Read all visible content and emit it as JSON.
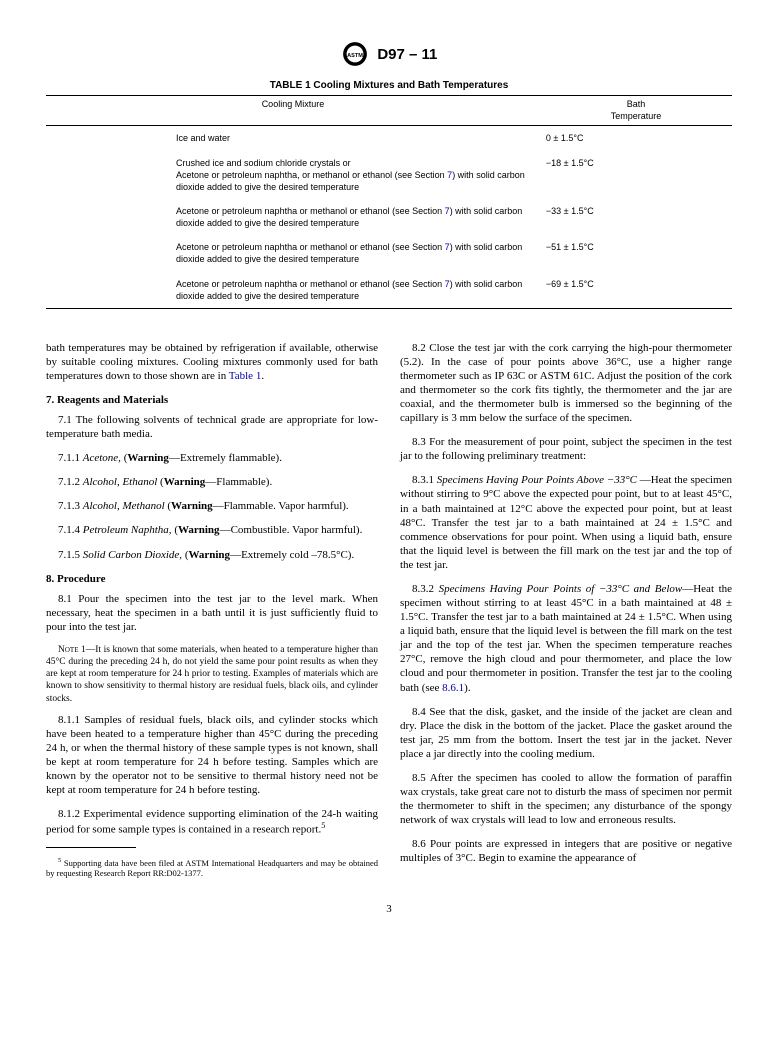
{
  "header": {
    "standard_id": "D97 – 11"
  },
  "table": {
    "caption": "TABLE 1 Cooling Mixtures and Bath Temperatures",
    "col_mix": "Cooling Mixture",
    "col_temp_1": "Bath",
    "col_temp_2": "Temperature",
    "rows": [
      {
        "mix_a": "Ice and water",
        "mix_b": "",
        "temp": "0 ± 1.5°C"
      },
      {
        "mix_a": "Crushed ice and sodium chloride crystals or",
        "mix_b_pre": "Acetone or petroleum naphtha, or methanol or ethanol (see Section ",
        "mix_b_link": "7",
        "mix_b_post": ") with solid carbon dioxide added to give the desired temperature",
        "temp": "−18 ± 1.5°C"
      },
      {
        "mix_a": "",
        "mix_b_pre": "Acetone or petroleum naphtha or methanol or ethanol (see Section ",
        "mix_b_link": "7",
        "mix_b_post": ") with solid carbon dioxide added to give the desired temperature",
        "temp": "−33 ± 1.5°C"
      },
      {
        "mix_a": "",
        "mix_b_pre": "Acetone or petroleum naphtha or methanol or ethanol (see Section ",
        "mix_b_link": "7",
        "mix_b_post": ") with solid carbon dioxide added to give the desired temperature",
        "temp": "−51 ± 1.5°C"
      },
      {
        "mix_a": "",
        "mix_b_pre": "Acetone or petroleum naphtha or methanol or ethanol (see Section ",
        "mix_b_link": "7",
        "mix_b_post": ") with solid carbon dioxide added to give the desired temperature",
        "temp": "−69 ± 1.5°C"
      }
    ]
  },
  "body": {
    "intro_pre": "bath temperatures may be obtained by refrigeration if available, otherwise by suitable cooling mixtures. Cooling mixtures commonly used for bath temperatures down to those shown are in ",
    "intro_link": "Table 1",
    "intro_post": ".",
    "s7_head": "7. Reagents and Materials",
    "s7_1": "7.1 The following solvents of technical grade are appropriate for low-temperature bath media.",
    "s7_1_1_pre": "7.1.1 ",
    "s7_1_1_em": "Acetone,",
    "s7_1_1_rest": " (",
    "s7_1_1_b": "Warning",
    "s7_1_1_tail": "—Extremely flammable).",
    "s7_1_2_pre": "7.1.2 ",
    "s7_1_2_em": "Alcohol, Ethanol",
    "s7_1_2_rest": " (",
    "s7_1_2_b": "Warning",
    "s7_1_2_tail": "—Flammable).",
    "s7_1_3_pre": "7.1.3 ",
    "s7_1_3_em": "Alcohol, Methanol",
    "s7_1_3_rest": " (",
    "s7_1_3_b": "Warning",
    "s7_1_3_tail": "—Flammable. Vapor harmful).",
    "s7_1_4_pre": "7.1.4 ",
    "s7_1_4_em": "Petroleum Naphtha,",
    "s7_1_4_rest": " (",
    "s7_1_4_b": "Warning",
    "s7_1_4_tail": "—Combustible. Vapor harmful).",
    "s7_1_5_pre": "7.1.5 ",
    "s7_1_5_em": "Solid Carbon Dioxide,",
    "s7_1_5_rest": " (",
    "s7_1_5_b": "Warning",
    "s7_1_5_tail": "—Extremely cold –78.5°C).",
    "s8_head": "8. Procedure",
    "s8_1": "8.1 Pour the specimen into the test jar to the level mark. When necessary, heat the specimen in a bath until it is just sufficiently fluid to pour into the test jar.",
    "note1_label": "Note",
    "note1_num": " 1—",
    "note1": "It is known that some materials, when heated to a temperature higher than 45°C during the preceding 24 h, do not yield the same pour point results as when they are kept at room temperature for 24 h prior to testing. Examples of materials which are known to show sensitivity to thermal history are residual fuels, black oils, and cylinder stocks.",
    "s8_1_1": "8.1.1 Samples of residual fuels, black oils, and cylinder stocks which have been heated to a temperature higher than 45°C during the preceding 24 h, or when the thermal history of these sample types is not known, shall be kept at room temperature for 24 h before testing. Samples which are known by the operator not to be sensitive to thermal history need not be kept at room temperature for 24 h before testing.",
    "s8_1_2_pre": "8.1.2 Experimental evidence supporting elimination of the 24-h waiting period for some sample types is contained in a research report.",
    "s8_1_2_sup": "5",
    "fn5_sup": "5",
    "fn5": " Supporting data have been filed at ASTM International Headquarters and may be obtained by requesting Research Report RR:D02-1377.",
    "s8_2": "8.2 Close the test jar with the cork carrying the high-pour thermometer (5.2). In the case of pour points above 36°C, use a higher range thermometer such as IP 63C or ASTM 61C. Adjust the position of the cork and thermometer so the cork fits tightly, the thermometer and the jar are coaxial, and the thermometer bulb is immersed so the beginning of the capillary is 3 mm below the surface of the specimen.",
    "s8_3": "8.3 For the measurement of pour point, subject the specimen in the test jar to the following preliminary treatment:",
    "s8_3_1_pre": "8.3.1 ",
    "s8_3_1_em": "Specimens Having Pour Points Above −33°C ",
    "s8_3_1": "—Heat the specimen without stirring to 9°C above the expected pour point, but to at least 45°C, in a bath maintained at 12°C above the expected pour point, but at least 48°C. Transfer the test jar to a bath maintained at 24 ± 1.5°C and commence observations for pour point. When using a liquid bath, ensure that the liquid level is between the fill mark on the test jar and the top of the test jar.",
    "s8_3_2_pre": "8.3.2 ",
    "s8_3_2_em": "Specimens Having Pour Points of −33°C and Below",
    "s8_3_2_a": "—Heat the specimen without stirring to at least 45°C in a bath maintained at 48 ± 1.5°C. Transfer the test jar to a bath maintained at 24 ± 1.5°C. When using a liquid bath, ensure that the liquid level is between the fill mark on the test jar and the top of the test jar. When the specimen temperature reaches 27°C, remove the high cloud and pour thermometer, and place the low cloud and pour thermometer in position. Transfer the test jar to the cooling bath (see ",
    "s8_3_2_link": "8.6.1",
    "s8_3_2_b": ").",
    "s8_4": "8.4 See that the disk, gasket, and the inside of the jacket are clean and dry. Place the disk in the bottom of the jacket. Place the gasket around the test jar, 25 mm from the bottom. Insert the test jar in the jacket. Never place a jar directly into the cooling medium.",
    "s8_5": "8.5 After the specimen has cooled to allow the formation of paraffin wax crystals, take great care not to disturb the mass of specimen nor permit the thermometer to shift in the specimen; any disturbance of the spongy network of wax crystals will lead to low and erroneous results.",
    "s8_6": "8.6 Pour points are expressed in integers that are positive or negative multiples of 3°C. Begin to examine the appearance of"
  },
  "page_number": "3"
}
